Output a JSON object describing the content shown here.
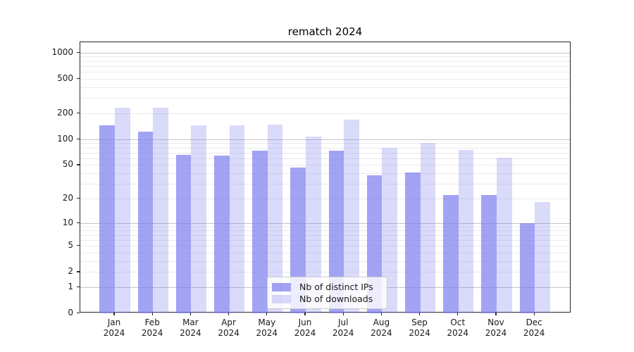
{
  "chart_data": {
    "type": "bar",
    "title": "rematch 2024",
    "categories": [
      "Jan",
      "Feb",
      "Mar",
      "Apr",
      "May",
      "Jun",
      "Jul",
      "Aug",
      "Sep",
      "Oct",
      "Nov",
      "Dec"
    ],
    "x_year_label": "2024",
    "series": [
      {
        "name": "Nb of distinct IPs",
        "color": "rgba(128,128,240,0.72)",
        "values": [
          144,
          122,
          66,
          65,
          73,
          47,
          73,
          38,
          41,
          22,
          22,
          10
        ]
      },
      {
        "name": "Nb of downloads",
        "color": "rgba(128,128,240,0.29)",
        "values": [
          233,
          233,
          144,
          146,
          148,
          108,
          168,
          80,
          91,
          75,
          61,
          18
        ]
      }
    ],
    "y_axis": {
      "scale": "log10(1+y)",
      "ticks": [
        0,
        1,
        2,
        5,
        10,
        20,
        50,
        100,
        200,
        500,
        1000
      ],
      "major_gridlines": [
        1,
        10,
        100,
        1000
      ],
      "ylim": [
        0,
        1300
      ]
    },
    "grid": "both",
    "legend_position": "lower center",
    "colors": {
      "major_grid": "#c3c3c3",
      "minor_grid": "#eaeaea",
      "spine": "#262626",
      "text": "#1a1a1a"
    }
  }
}
